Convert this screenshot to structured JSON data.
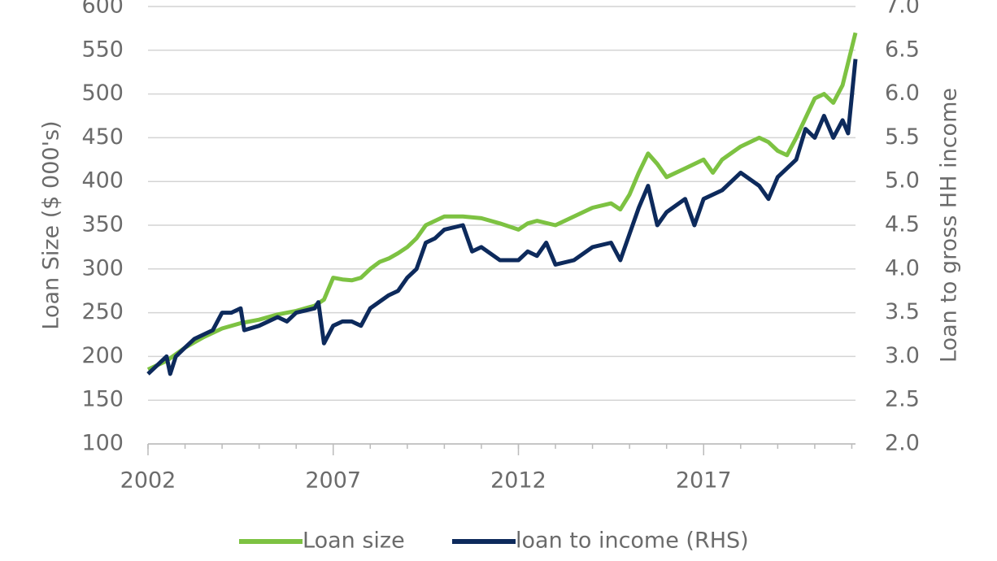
{
  "chart_data": {
    "type": "line",
    "y_label": "Loan Size ($ 000's)",
    "y2_label": "Loan to gross HH income",
    "xlim": [
      2002,
      2021.1
    ],
    "xticks": [
      2002,
      2007,
      2012,
      2017
    ],
    "ylim": [
      100,
      600
    ],
    "yticks": [
      100,
      150,
      200,
      250,
      300,
      350,
      400,
      450,
      500,
      550,
      600
    ],
    "y2lim": [
      2,
      7
    ],
    "y2ticks": [
      {
        "value": 2,
        "label": "2.0"
      },
      {
        "value": 2.5,
        "label": "2.5"
      },
      {
        "value": 3,
        "label": "3.0"
      },
      {
        "value": 3.5,
        "label": "3.5"
      },
      {
        "value": 4,
        "label": "4.0"
      },
      {
        "value": 4.5,
        "label": "4.5"
      },
      {
        "value": 5,
        "label": "5.0"
      },
      {
        "value": 5.5,
        "label": "5.5"
      },
      {
        "value": 6,
        "label": "6.0"
      },
      {
        "value": 6.5,
        "label": "6.5"
      },
      {
        "value": 7,
        "label": "7.0"
      }
    ],
    "grid": true,
    "legend": "bottom",
    "series": [
      {
        "name": "Loan size",
        "color": "#7dc242",
        "x": [
          2002,
          2002.5,
          2003,
          2003.5,
          2004,
          2004.5,
          2005,
          2005.5,
          2006,
          2006.5,
          2006.75,
          2007,
          2007.25,
          2007.5,
          2007.75,
          2008,
          2008.25,
          2008.5,
          2008.75,
          2009,
          2009.25,
          2009.5,
          2009.75,
          2010,
          2010.5,
          2011,
          2011.5,
          2012,
          2012.25,
          2012.5,
          2013,
          2013.5,
          2014,
          2014.5,
          2014.75,
          2015,
          2015.25,
          2015.5,
          2015.75,
          2016,
          2016.5,
          2017,
          2017.25,
          2017.5,
          2018,
          2018.5,
          2018.75,
          2019,
          2019.25,
          2019.5,
          2020,
          2020.25,
          2020.5,
          2020.75,
          2021.1
        ],
        "values": [
          185,
          195,
          210,
          222,
          232,
          238,
          242,
          248,
          252,
          258,
          265,
          290,
          288,
          287,
          290,
          300,
          308,
          312,
          318,
          325,
          335,
          350,
          355,
          360,
          360,
          358,
          352,
          345,
          352,
          355,
          350,
          360,
          370,
          375,
          368,
          385,
          410,
          432,
          420,
          405,
          415,
          425,
          410,
          425,
          440,
          450,
          445,
          435,
          430,
          450,
          495,
          500,
          490,
          510,
          570
        ]
      },
      {
        "name": "loan to income (RHS)",
        "color": "#0d2a5c",
        "axis": "y2",
        "x": [
          2002,
          2002.25,
          2002.5,
          2002.6,
          2002.75,
          2003,
          2003.25,
          2003.5,
          2003.75,
          2004,
          2004.25,
          2004.5,
          2004.6,
          2005,
          2005.5,
          2005.75,
          2006,
          2006.5,
          2006.6,
          2006.75,
          2007,
          2007.25,
          2007.5,
          2007.75,
          2008,
          2008.5,
          2008.75,
          2009,
          2009.25,
          2009.5,
          2009.75,
          2010,
          2010.5,
          2010.75,
          2011,
          2011.5,
          2012,
          2012.25,
          2012.5,
          2012.75,
          2013,
          2013.5,
          2014,
          2014.5,
          2014.75,
          2015,
          2015.25,
          2015.5,
          2015.75,
          2016,
          2016.5,
          2016.75,
          2017,
          2017.5,
          2018,
          2018.5,
          2018.75,
          2019,
          2019.5,
          2019.75,
          2020,
          2020.25,
          2020.5,
          2020.75,
          2020.9,
          2021.1
        ],
        "values": [
          2.8,
          2.9,
          3.0,
          2.8,
          3.0,
          3.1,
          3.2,
          3.25,
          3.3,
          3.5,
          3.5,
          3.55,
          3.3,
          3.35,
          3.45,
          3.4,
          3.5,
          3.55,
          3.62,
          3.15,
          3.35,
          3.4,
          3.4,
          3.35,
          3.55,
          3.7,
          3.75,
          3.9,
          4.0,
          4.3,
          4.35,
          4.45,
          4.5,
          4.2,
          4.25,
          4.1,
          4.1,
          4.2,
          4.15,
          4.3,
          4.05,
          4.1,
          4.25,
          4.3,
          4.1,
          4.4,
          4.7,
          4.95,
          4.5,
          4.65,
          4.8,
          4.5,
          4.8,
          4.9,
          5.1,
          4.95,
          4.8,
          5.05,
          5.25,
          5.6,
          5.5,
          5.75,
          5.5,
          5.7,
          5.55,
          6.4
        ]
      }
    ]
  }
}
